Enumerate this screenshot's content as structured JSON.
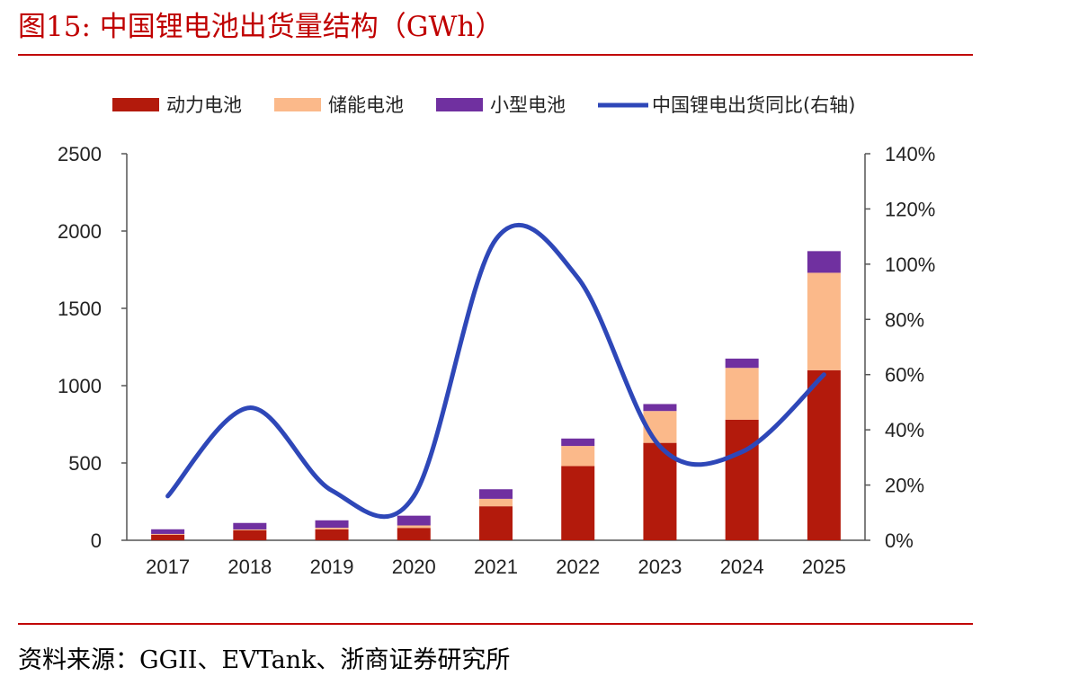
{
  "header": {
    "title": "图15:   中国锂电池出货量结构（GWh）"
  },
  "footer": {
    "source": "资料来源：GGII、EVTank、浙商证券研究所"
  },
  "colors": {
    "power": "#b31a0c",
    "storage": "#fbb98a",
    "small": "#7030a0",
    "line": "#2e47b8",
    "accent": "#c00000"
  },
  "chart_data": {
    "type": "bar",
    "stacked": true,
    "categories": [
      "2017",
      "2018",
      "2019",
      "2020",
      "2021",
      "2022",
      "2023",
      "2024",
      "2025"
    ],
    "series": [
      {
        "name": "动力电池",
        "type": "bar",
        "axis": "left",
        "values": [
          36,
          65,
          71,
          80,
          220,
          480,
          630,
          780,
          1100
        ]
      },
      {
        "name": "储能电池",
        "type": "bar",
        "axis": "left",
        "values": [
          5,
          5,
          10,
          16,
          48,
          130,
          206,
          335,
          630
        ]
      },
      {
        "name": "小型电池",
        "type": "bar",
        "axis": "left",
        "values": [
          30,
          42,
          48,
          63,
          62,
          48,
          45,
          60,
          140
        ]
      },
      {
        "name": "中国锂电出货同比(右轴)",
        "type": "line",
        "axis": "right",
        "values": [
          0.16,
          0.48,
          0.18,
          0.16,
          1.09,
          0.95,
          0.34,
          0.32,
          0.6
        ]
      }
    ],
    "y_left": {
      "ticks": [
        "0",
        "500",
        "1000",
        "1500",
        "2000",
        "2500"
      ],
      "ylim": [
        0,
        2500
      ]
    },
    "y_right": {
      "ticks": [
        "0%",
        "20%",
        "40%",
        "60%",
        "80%",
        "100%",
        "120%",
        "140%"
      ],
      "ylim": [
        0,
        1.4
      ]
    },
    "legend": "top"
  }
}
